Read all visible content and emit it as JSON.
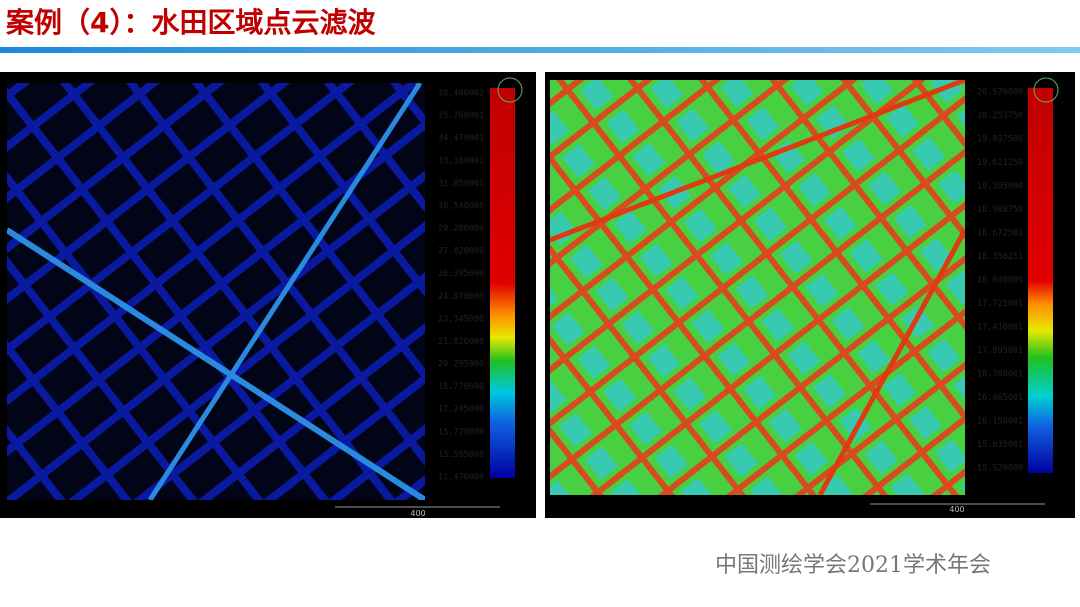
{
  "header": {
    "title": "案例（4）：水田区域点云滤波"
  },
  "panels": [
    {
      "colorbar": [
        "38.400002",
        "35.760001",
        "34.470001",
        "33.160001",
        "31.850001",
        "30.540000",
        "29.280000",
        "27.820000",
        "26.395000",
        "24.870000",
        "23.345000",
        "21.820000",
        "20.295000",
        "18.770000",
        "17.245000",
        "15.720000",
        "13.595000",
        "11.470000"
      ],
      "scale": "400"
    },
    {
      "colorbar": [
        "20.570000",
        "20.253750",
        "19.937500",
        "19.621250",
        "19.305000",
        "18.988750",
        "18.672501",
        "18.356251",
        "18.040000",
        "17.725001",
        "17.410001",
        "17.095001",
        "16.780001",
        "16.465001",
        "16.150001",
        "15.835001",
        "15.520000"
      ],
      "scale": "400"
    }
  ],
  "footer": {
    "text": "中国测绘学会2021学术年会"
  }
}
